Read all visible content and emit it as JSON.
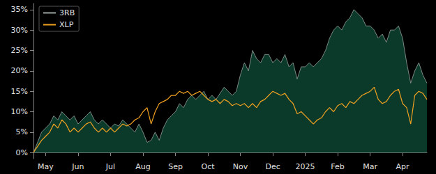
{
  "chart_data": {
    "type": "line",
    "categories": [
      null,
      null,
      null,
      "May",
      null,
      null,
      null,
      null,
      null,
      null,
      null,
      "Jun",
      null,
      null,
      null,
      null,
      null,
      null,
      null,
      "Jul",
      null,
      null,
      null,
      null,
      null,
      null,
      null,
      "Aug",
      null,
      null,
      null,
      null,
      null,
      null,
      null,
      "Sep",
      null,
      null,
      null,
      null,
      null,
      null,
      null,
      "Oct",
      null,
      null,
      null,
      null,
      null,
      null,
      null,
      "Nov",
      null,
      null,
      null,
      null,
      null,
      null,
      null,
      "Dec",
      null,
      null,
      null,
      null,
      null,
      null,
      null,
      "2025",
      null,
      null,
      null,
      null,
      null,
      null,
      null,
      "Feb",
      null,
      null,
      null,
      null,
      null,
      null,
      null,
      "Mar",
      null,
      null,
      null,
      null,
      null,
      null,
      null,
      "Apr",
      null,
      null,
      null,
      null,
      null,
      null
    ],
    "series": [
      {
        "name": "3RB",
        "type": "area",
        "color": "#9aa5a0",
        "values": [
          0,
          2.5,
          5,
          6,
          7,
          9,
          8,
          10,
          9,
          8,
          9,
          7,
          8,
          9,
          10,
          8,
          7,
          8,
          7,
          6,
          7,
          6.5,
          8,
          7,
          6,
          5,
          7,
          5,
          2.5,
          3,
          5,
          3,
          6,
          8,
          9,
          10,
          12,
          11,
          13,
          14,
          13,
          14,
          15,
          13,
          14,
          13,
          14.5,
          16,
          15,
          14,
          15,
          19,
          22,
          20,
          25,
          23,
          22,
          24,
          24,
          22,
          23,
          22,
          24,
          21,
          22,
          18,
          21,
          21,
          22,
          21,
          22,
          23,
          25,
          28,
          30,
          31,
          30,
          32,
          33,
          35,
          34,
          33,
          31,
          31,
          30,
          28,
          29,
          27,
          30,
          30,
          31,
          28,
          22,
          17,
          20,
          22,
          19,
          17
        ]
      },
      {
        "name": "XLP",
        "type": "line",
        "color": "#f0a020",
        "values": [
          0,
          1.5,
          3,
          4,
          5,
          7,
          6,
          8,
          7,
          5,
          6,
          5,
          6,
          7,
          7.5,
          6,
          5,
          6,
          5,
          6,
          5,
          6,
          7,
          6.5,
          7,
          8,
          8.5,
          10,
          11,
          7,
          10,
          12,
          12.5,
          13,
          14,
          14,
          15,
          14.5,
          15,
          14,
          14.5,
          15,
          14,
          13,
          12.5,
          13,
          12,
          13,
          12.5,
          11.5,
          12,
          11.5,
          12,
          11,
          12,
          11,
          12.5,
          13,
          14,
          15,
          14.5,
          14,
          14.5,
          13,
          12,
          9.5,
          10,
          9,
          8,
          7,
          8,
          8.5,
          10,
          11,
          10,
          11.5,
          12,
          11,
          12.5,
          12,
          13,
          14,
          14.5,
          15,
          16,
          13,
          12,
          12.5,
          14,
          15,
          15.5,
          12,
          11,
          7,
          14,
          15,
          14.5,
          13
        ]
      }
    ],
    "ylim": [
      -1.5,
      36.5
    ],
    "yticks": [
      {
        "value": 0,
        "label": "0%"
      },
      {
        "value": 5,
        "label": "5%"
      },
      {
        "value": 10,
        "label": "10%"
      },
      {
        "value": 15,
        "label": "15%"
      },
      {
        "value": 20,
        "label": "20%"
      },
      {
        "value": 25,
        "label": "25%"
      },
      {
        "value": 30,
        "label": "30%"
      },
      {
        "value": 35,
        "label": "35%"
      }
    ],
    "grid": false,
    "legend": "upper left"
  }
}
